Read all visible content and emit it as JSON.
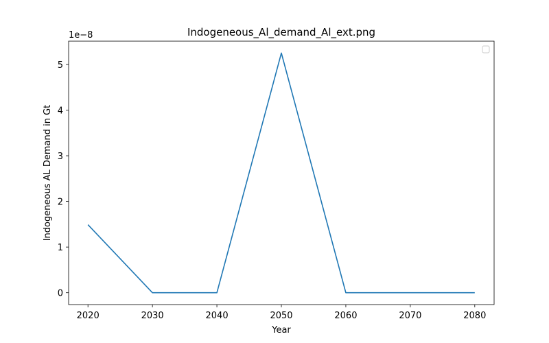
{
  "chart_data": {
    "type": "line",
    "title": "Indogeneous_Al_demand_Al_ext.png",
    "xlabel": "Year",
    "ylabel": "Indogeneous AL Demand in Gt",
    "y_offset_label": "1e−8",
    "x": [
      2020,
      2030,
      2040,
      2050,
      2060,
      2070,
      2080
    ],
    "series": [
      {
        "values": [
          1.49e-08,
          0,
          0,
          5.25e-08,
          0,
          0,
          0
        ],
        "color": "#1f77b4"
      }
    ],
    "xlim": [
      2017,
      2083
    ],
    "ylim": [
      -2.6e-09,
      5.51e-08
    ],
    "x_ticks": [
      2020,
      2030,
      2040,
      2050,
      2060,
      2070,
      2080
    ],
    "y_ticks": [
      0,
      1,
      2,
      3,
      4,
      5
    ],
    "y_tick_scale": 1e-08,
    "legend": "top-right",
    "grid": false
  }
}
